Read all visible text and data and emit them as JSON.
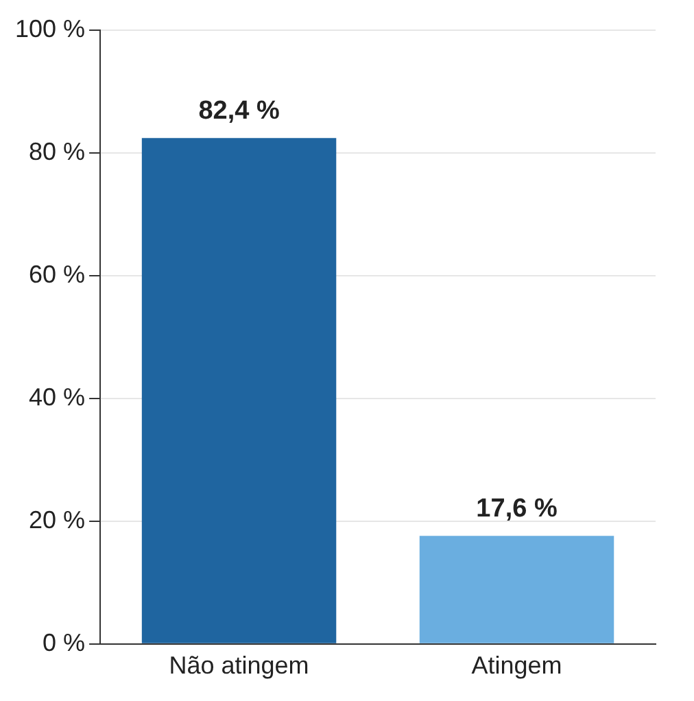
{
  "chart_data": {
    "type": "bar",
    "categories": [
      "Não atingem",
      "Atingem"
    ],
    "values": [
      82.4,
      17.6
    ],
    "colors": [
      "#1f65a0",
      "#6aaee0"
    ],
    "value_labels": [
      "82,4 %",
      "17,6 %"
    ],
    "ylim": [
      0,
      100
    ],
    "yticks": [
      {
        "value": 0,
        "label": "0 %"
      },
      {
        "value": 20,
        "label": "20 %"
      },
      {
        "value": 40,
        "label": "40 %"
      },
      {
        "value": 60,
        "label": "60 %"
      },
      {
        "value": 80,
        "label": "80 %"
      },
      {
        "value": 100,
        "label": "100 %"
      }
    ],
    "grid": "y",
    "legend": false
  }
}
